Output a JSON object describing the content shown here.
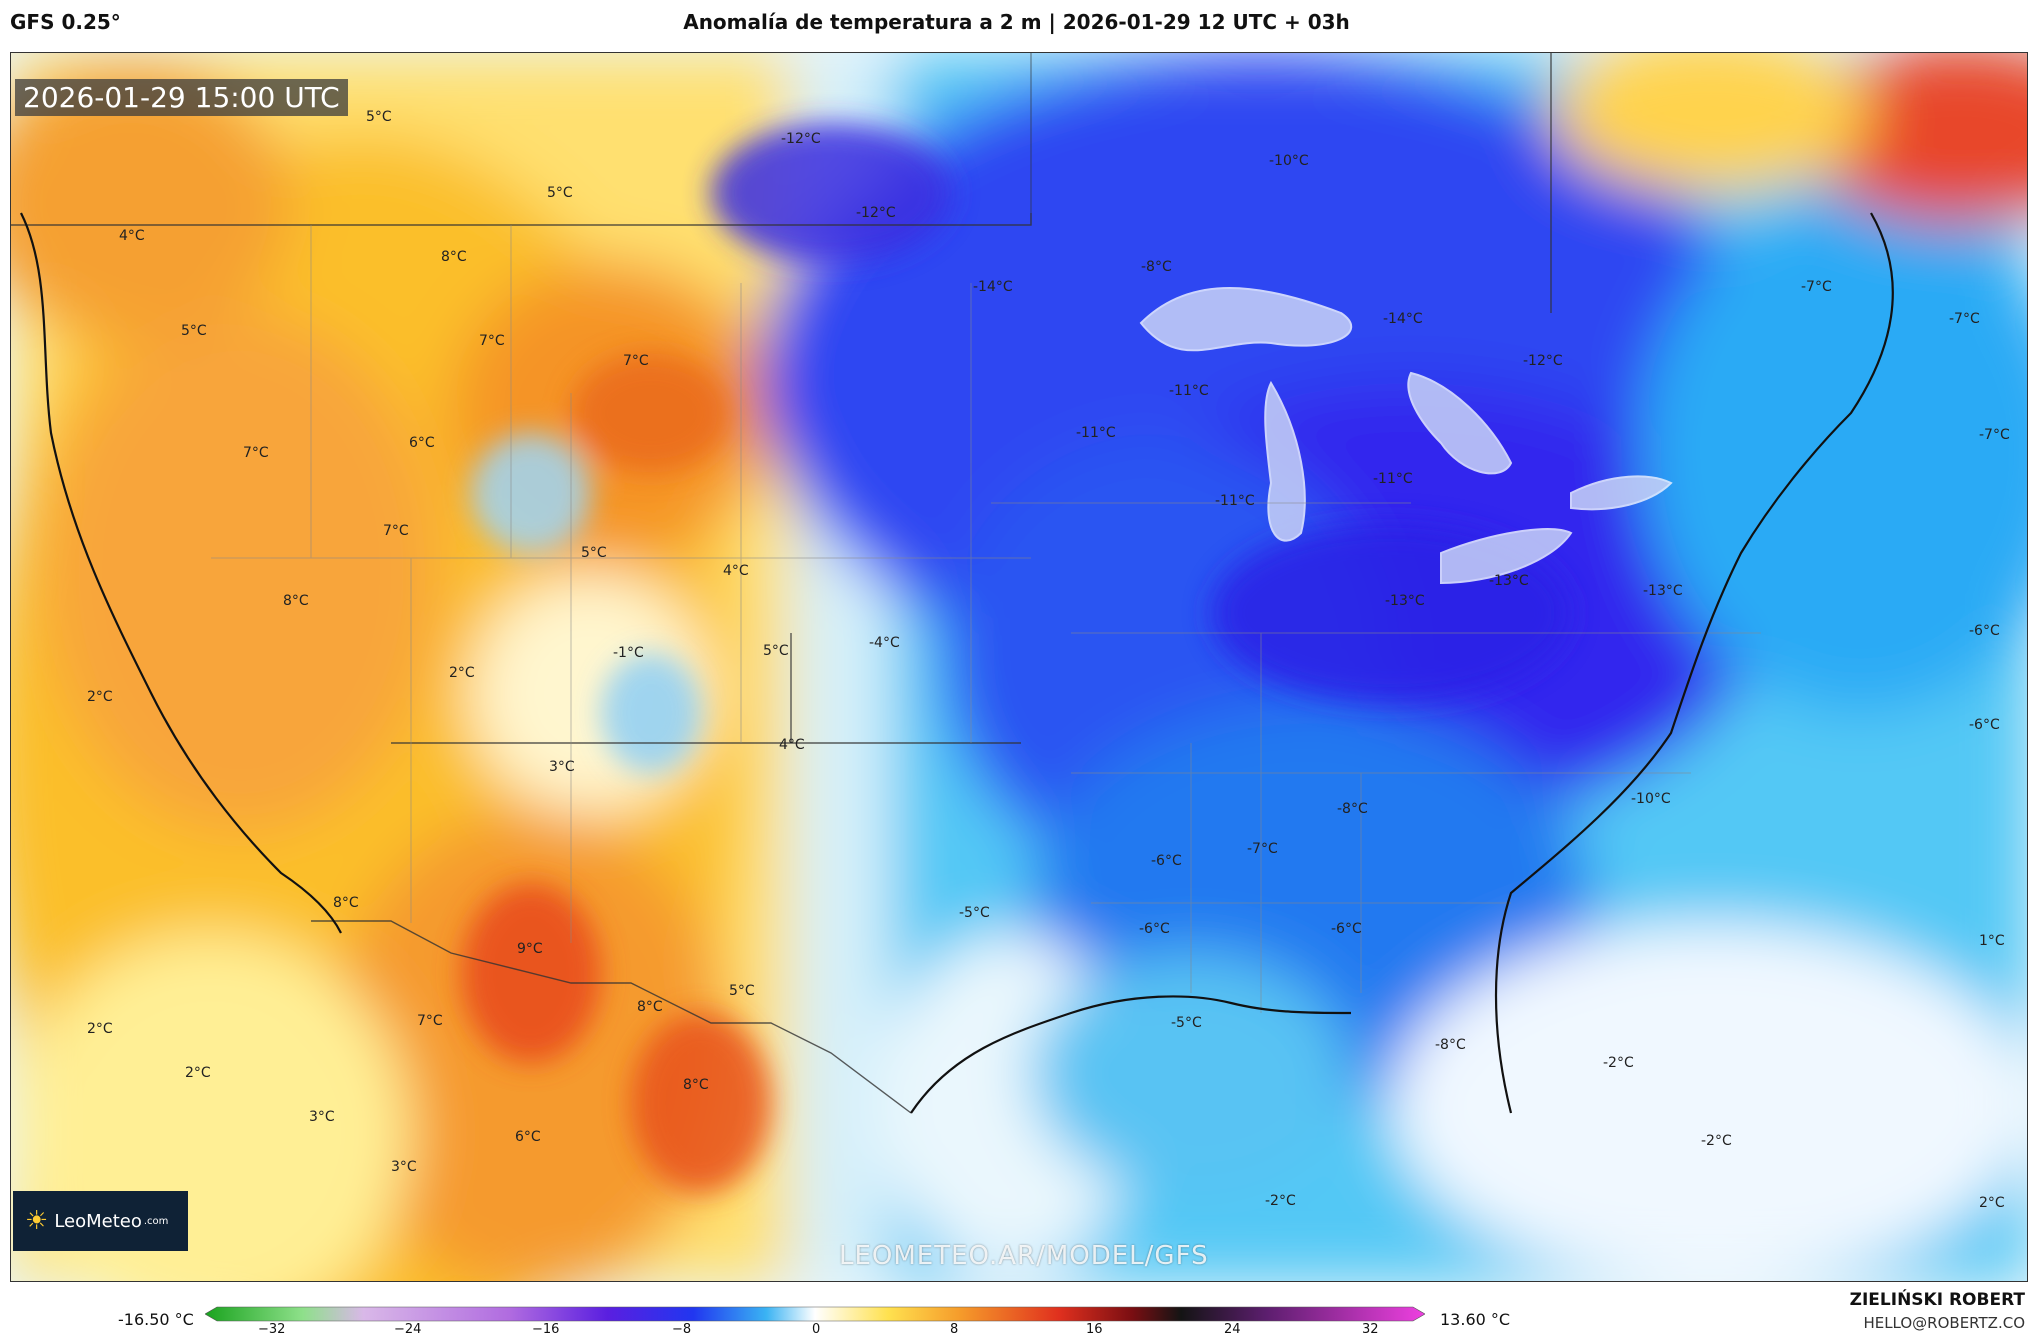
{
  "header": {
    "model": "GFS 0.25°",
    "title": "Anomalía de temperatura a 2 m | 2026-01-29 12 UTC + 03h"
  },
  "map": {
    "timestamp": "2026-01-29 15:00 UTC",
    "watermark": "LEOMETEO.AR/MODEL/GFS",
    "logo_text": "LeoMeteo",
    "logo_suffix": ".com",
    "labels": [
      "5°C",
      "5°C",
      "-12°C",
      "-12°C",
      "-10°C",
      "4°C",
      "8°C",
      "-8°C",
      "-14°C",
      "-14°C",
      "-7°C",
      "-7°C",
      "5°C",
      "7°C",
      "7°C",
      "-12°C",
      "-11°C",
      "-11°C",
      "7°C",
      "6°C",
      "-7°C",
      "-11°C",
      "-11°C",
      "7°C",
      "5°C",
      "4°C",
      "8°C",
      "-13°C",
      "-13°C",
      "-13°C",
      "-4°C",
      "-1°C",
      "5°C",
      "2°C",
      "2°C",
      "-6°C",
      "4°C",
      "-6°C",
      "3°C",
      "-10°C",
      "-8°C",
      "-7°C",
      "-6°C",
      "8°C",
      "-5°C",
      "-6°C",
      "-6°C",
      "9°C",
      "1°C",
      "5°C",
      "8°C",
      "2°C",
      "7°C",
      "-5°C",
      "-8°C",
      "2°C",
      "-2°C",
      "8°C",
      "3°C",
      "-2°C",
      "6°C",
      "3°C",
      "-2°C",
      "2°C"
    ],
    "colors": {
      "warm_orange": "#f28c28",
      "cold_blue": "#2b4cf0",
      "deep_purple": "#6a1be0"
    }
  },
  "scale": {
    "min_label": "-16.50 °C",
    "max_label": "13.60 °C",
    "ticks": [
      "−32",
      "−24",
      "−16",
      "−8",
      "0",
      "8",
      "16",
      "24",
      "32"
    ]
  },
  "footer": {
    "author": "ZIELIŃSKI ROBERT",
    "email": "HELLO@ROBERTZ.CO"
  }
}
